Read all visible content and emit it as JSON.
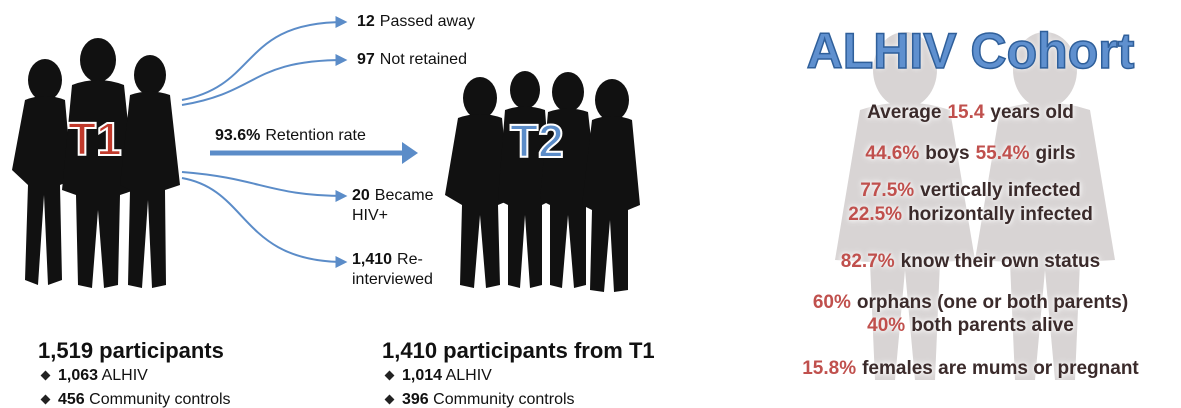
{
  "t1": {
    "label": "T1"
  },
  "t2": {
    "label": "T2"
  },
  "retention": {
    "number": "93.6%",
    "text": "Retention rate"
  },
  "outcomes": [
    {
      "number": "12",
      "text": "Passed away"
    },
    {
      "number": "97",
      "text": "Not retained"
    },
    {
      "number": "20",
      "text": "Became HIV+"
    },
    {
      "number": "1,410",
      "text": "Re-interviewed"
    }
  ],
  "t1_summary": {
    "title": "1,519 participants",
    "items": [
      {
        "number": "1,063",
        "text": "ALHIV"
      },
      {
        "number": "456",
        "text": "Community controls"
      }
    ]
  },
  "t2_summary": {
    "title": "1,410 participants from T1",
    "items": [
      {
        "number": "1,014",
        "text": "ALHIV"
      },
      {
        "number": "396",
        "text": "Community controls"
      }
    ]
  },
  "cohort": {
    "title": "ALHIV Cohort",
    "lines": [
      {
        "parts": [
          {
            "text": "Average"
          },
          {
            "text": "15.4",
            "em": true
          },
          {
            "text": "years old"
          }
        ]
      },
      {
        "parts": [
          {
            "text": "44.6%",
            "em": true
          },
          {
            "text": "boys"
          },
          {
            "text": "55.4%",
            "em": true
          },
          {
            "text": "girls"
          }
        ]
      },
      {
        "parts": [
          {
            "text": "77.5%",
            "em": true
          },
          {
            "text": "vertically infected"
          }
        ]
      },
      {
        "parts": [
          {
            "text": "22.5%",
            "em": true
          },
          {
            "text": "horizontally infected"
          }
        ]
      },
      {
        "parts": [
          {
            "text": "82.7%",
            "em": true
          },
          {
            "text": "know their own status"
          }
        ]
      },
      {
        "parts": [
          {
            "text": "60%",
            "em": true
          },
          {
            "text": "orphans (one or both parents)"
          }
        ]
      },
      {
        "parts": [
          {
            "text": "40%",
            "em": true
          },
          {
            "text": "both parents alive"
          }
        ]
      },
      {
        "parts": [
          {
            "text": "15.8%",
            "em": true
          },
          {
            "text": "females are mums or pregnant"
          }
        ]
      }
    ]
  }
}
